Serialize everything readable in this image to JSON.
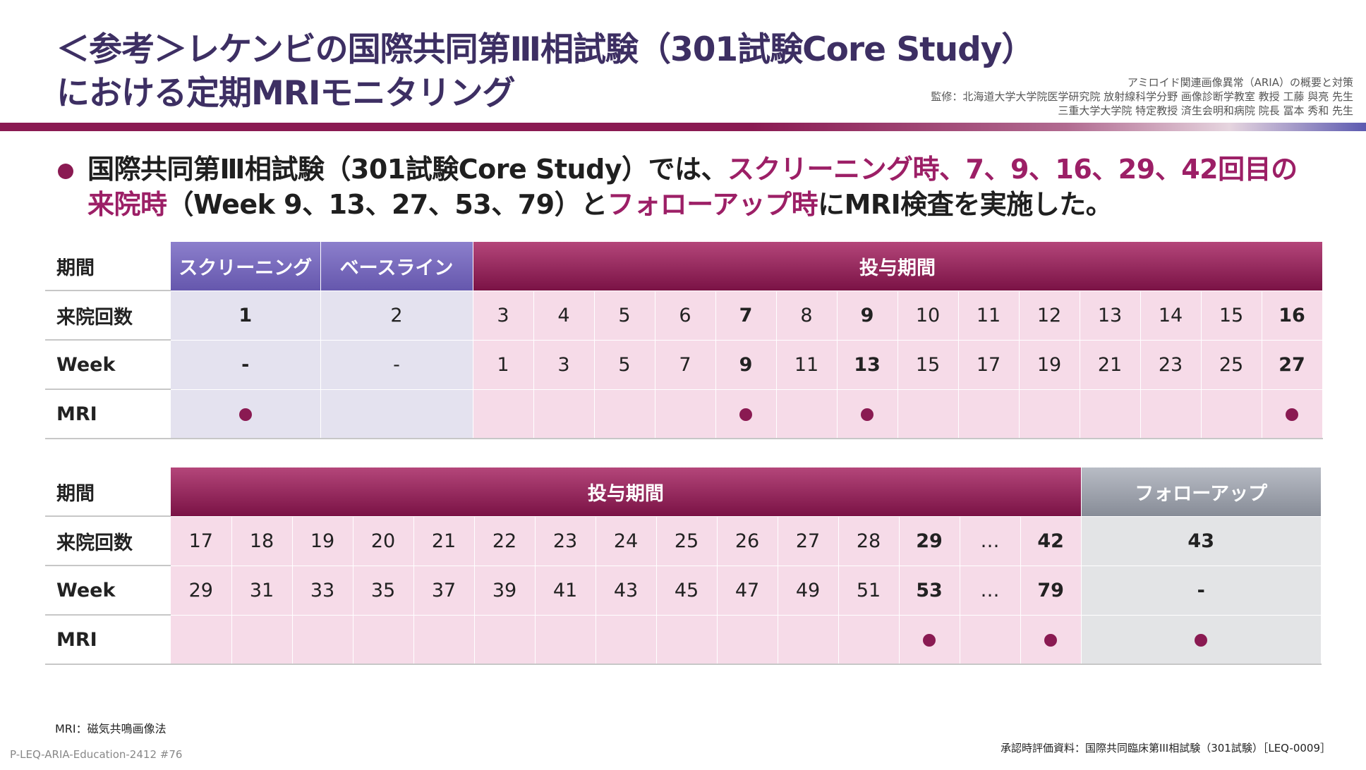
{
  "title": {
    "line1": "＜参考＞レケンビの国際共同第Ⅲ相試験（301試験Core Study）",
    "line2": "における定期MRIモニタリング"
  },
  "header": {
    "topic": "アミロイド関連画像異常（ARIA）の概要と対策",
    "supervisor1": "監修：北海道大学大学院医学研究院 放射線科学分野 画像診断学教室 教授 工藤 與亮 先生",
    "supervisor2": "三重大学大学院 特定教授 済生会明和病院 院長 冨本 秀和 先生"
  },
  "bullet": {
    "p1": "国際共同第Ⅲ相試験（301試験Core Study）では、",
    "p2": "スクリーニング時、7、9、16、29、42回目の",
    "p3": "来院時",
    "p4": "（Week 9、13、27、53、79）と",
    "p5": "フォローアップ時",
    "p6": "にMRI検査を実施した。"
  },
  "row_labels": {
    "period": "期間",
    "visit": "来院回数",
    "week": "Week",
    "mri": "MRI"
  },
  "table1": {
    "headers": {
      "screening": "スクリーニング",
      "baseline": "ベースライン",
      "dosing": "投与期間"
    },
    "visits": [
      "1",
      "2",
      "3",
      "4",
      "5",
      "6",
      "7",
      "8",
      "9",
      "10",
      "11",
      "12",
      "13",
      "14",
      "15",
      "16"
    ],
    "weeks": [
      "-",
      "-",
      "1",
      "3",
      "5",
      "7",
      "9",
      "11",
      "13",
      "15",
      "17",
      "19",
      "21",
      "23",
      "25",
      "27"
    ],
    "mri": [
      true,
      false,
      false,
      false,
      false,
      false,
      true,
      false,
      true,
      false,
      false,
      false,
      false,
      false,
      false,
      true
    ]
  },
  "table2": {
    "headers": {
      "dosing": "投与期間",
      "followup": "フォローアップ"
    },
    "visits": [
      "17",
      "18",
      "19",
      "20",
      "21",
      "22",
      "23",
      "24",
      "25",
      "26",
      "27",
      "28",
      "29",
      "…",
      "42",
      "43"
    ],
    "weeks": [
      "29",
      "31",
      "33",
      "35",
      "37",
      "39",
      "41",
      "43",
      "45",
      "47",
      "49",
      "51",
      "53",
      "…",
      "79",
      "-"
    ],
    "mri": [
      false,
      false,
      false,
      false,
      false,
      false,
      false,
      false,
      false,
      false,
      false,
      false,
      true,
      false,
      true,
      true
    ]
  },
  "footer": {
    "footnote": "MRI：磁気共鳴画像法",
    "source": "承認時評価資料：国際共同臨床第III相試験（301試験）［LEQ-0009］",
    "code": "P-LEQ-ARIA-Education-2412 #76"
  },
  "colors": {
    "title": "#3d2f63",
    "accent": "#9c1f66",
    "screening_header": "#6557ad",
    "dosing_header": "#7a1245",
    "followup_header": "#878c97",
    "pink_cell": "#f6dbe8",
    "lavender_cell": "#e4e2ef",
    "gray_cell": "#e3e4e6"
  }
}
